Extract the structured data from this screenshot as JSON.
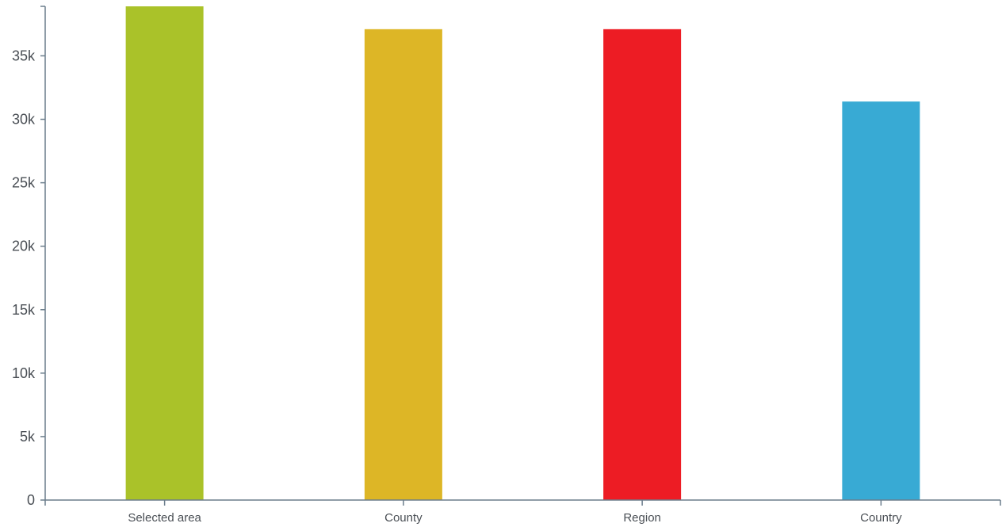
{
  "chart_data": {
    "type": "bar",
    "categories": [
      "Selected area",
      "County",
      "Region",
      "Country"
    ],
    "values": [
      38900,
      37100,
      37100,
      31400
    ],
    "colors": [
      "#aac229",
      "#ddb626",
      "#ed1c24",
      "#38aad4"
    ],
    "ylim": [
      0,
      38900
    ],
    "yticks": [
      0,
      5000,
      10000,
      15000,
      20000,
      25000,
      30000,
      35000
    ],
    "ytick_labels": [
      "0",
      "5k",
      "10k",
      "15k",
      "20k",
      "25k",
      "30k",
      "35k"
    ],
    "grid": false,
    "title": "",
    "xlabel": "",
    "ylabel": ""
  }
}
